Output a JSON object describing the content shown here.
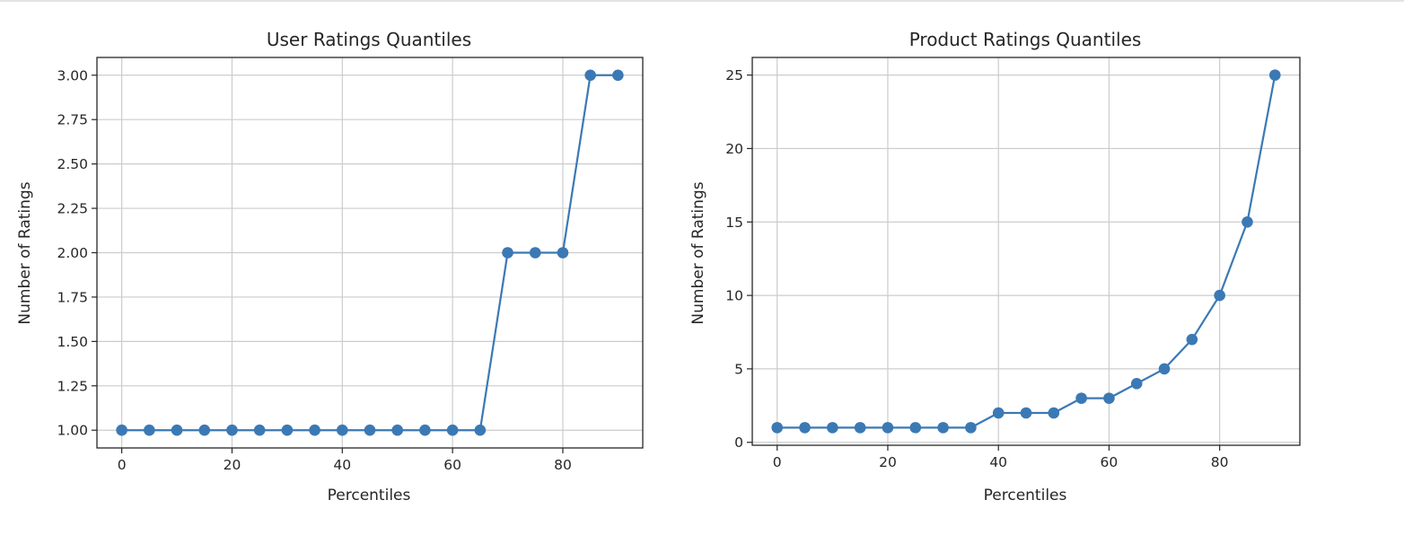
{
  "chart_data": [
    {
      "type": "line",
      "title": "User Ratings Quantiles",
      "xlabel": "Percentiles",
      "ylabel": "Number of Ratings",
      "x": [
        0,
        5,
        10,
        15,
        20,
        25,
        30,
        35,
        40,
        45,
        50,
        55,
        60,
        65,
        70,
        75,
        80,
        85,
        90
      ],
      "values": [
        1,
        1,
        1,
        1,
        1,
        1,
        1,
        1,
        1,
        1,
        1,
        1,
        1,
        1,
        2,
        2,
        2,
        3,
        3
      ],
      "xlim": [
        -4.5,
        94.5
      ],
      "ylim": [
        0.9,
        3.1
      ],
      "xticks": [
        0,
        20,
        40,
        60,
        80
      ],
      "yticks": [
        1.0,
        1.25,
        1.5,
        1.75,
        2.0,
        2.25,
        2.5,
        2.75,
        3.0
      ],
      "ytick_labels": [
        "1.00",
        "1.25",
        "1.50",
        "1.75",
        "2.00",
        "2.25",
        "2.50",
        "2.75",
        "3.00"
      ],
      "grid": true,
      "color": "#3b79b4"
    },
    {
      "type": "line",
      "title": "Product Ratings Quantiles",
      "xlabel": "Percentiles",
      "ylabel": "Number of Ratings",
      "x": [
        0,
        5,
        10,
        15,
        20,
        25,
        30,
        35,
        40,
        45,
        50,
        55,
        60,
        65,
        70,
        75,
        80,
        85,
        90
      ],
      "values": [
        1,
        1,
        1,
        1,
        1,
        1,
        1,
        1,
        2,
        2,
        2,
        3,
        3,
        4,
        5,
        7,
        10,
        15,
        25
      ],
      "xlim": [
        -4.5,
        94.5
      ],
      "ylim": [
        -0.2,
        26.2
      ],
      "xticks": [
        0,
        20,
        40,
        60,
        80
      ],
      "yticks": [
        0,
        5,
        10,
        15,
        20,
        25
      ],
      "ytick_labels": [
        "0",
        "5",
        "10",
        "15",
        "20",
        "25"
      ],
      "grid": true,
      "color": "#3b79b4"
    }
  ]
}
